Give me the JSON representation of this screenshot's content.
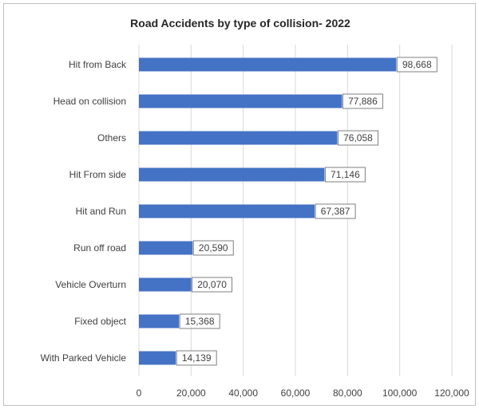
{
  "chart_data": {
    "type": "bar",
    "orientation": "horizontal",
    "title": "Road Accidents by type of collision- 2022",
    "categories": [
      "Hit from Back",
      "Head on collision",
      "Others",
      "Hit From side",
      "Hit and Run",
      "Run off road",
      "Vehicle Overturn",
      "Fixed object",
      "With Parked Vehicle"
    ],
    "values": [
      98668,
      77886,
      76058,
      71146,
      67387,
      20590,
      20070,
      15368,
      14139
    ],
    "data_labels": [
      "98,668",
      "77,886",
      "76,058",
      "71,146",
      "67,387",
      "20,590",
      "20,070",
      "15,368",
      "14,139"
    ],
    "xlim": [
      0,
      120000
    ],
    "x_ticks": [
      0,
      20000,
      40000,
      60000,
      80000,
      100000,
      120000
    ],
    "x_tick_labels": [
      "0",
      "20,000",
      "40,000",
      "60,000",
      "80,000",
      "100,000",
      "120,000"
    ],
    "grid": true,
    "legend": "none",
    "bar_color": "#4472c4",
    "grid_color": "#d9d9d9"
  }
}
